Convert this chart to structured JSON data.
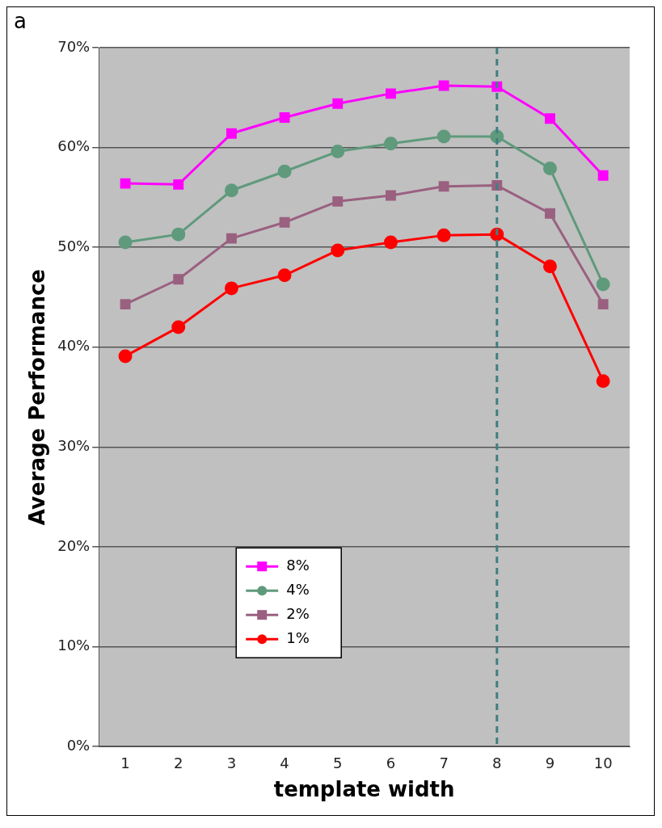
{
  "chart_data": {
    "type": "line",
    "xlabel": "template width",
    "ylabel": "Average Performance",
    "categories": [
      "1",
      "2",
      "3",
      "4",
      "5",
      "6",
      "7",
      "8",
      "9",
      "10"
    ],
    "series": [
      {
        "name": "8%",
        "color": "#ff00ff",
        "marker": "square",
        "values": [
          56.4,
          56.3,
          61.4,
          63.0,
          64.4,
          65.4,
          66.2,
          66.1,
          62.9,
          57.2
        ]
      },
      {
        "name": "4%",
        "color": "#5f9a7c",
        "marker": "circle",
        "values": [
          50.5,
          51.3,
          55.7,
          57.6,
          59.6,
          60.4,
          61.1,
          61.1,
          57.9,
          46.3
        ]
      },
      {
        "name": "2%",
        "color": "#9a6080",
        "marker": "square",
        "values": [
          44.3,
          46.8,
          50.9,
          52.5,
          54.6,
          55.2,
          56.1,
          56.2,
          53.4,
          44.3
        ]
      },
      {
        "name": "1%",
        "color": "#ff0000",
        "marker": "circle",
        "values": [
          39.1,
          42.0,
          45.9,
          47.2,
          49.7,
          50.5,
          51.2,
          51.3,
          48.1,
          36.6
        ]
      }
    ],
    "ylim": [
      0,
      70
    ],
    "yticks": [
      {
        "value": 0,
        "label": "0%"
      },
      {
        "value": 10,
        "label": "10%"
      },
      {
        "value": 20,
        "label": "20%"
      },
      {
        "value": 30,
        "label": "30%"
      },
      {
        "value": 40,
        "label": "40%"
      },
      {
        "value": 50,
        "label": "50%"
      },
      {
        "value": 60,
        "label": "60%"
      },
      {
        "value": 70,
        "label": "70%"
      }
    ],
    "grid": "y",
    "legend": "bottom left",
    "line_style": "solid",
    "ref_lines": [
      {
        "axis": "x",
        "value": "8",
        "color": "#3f7f7f",
        "line_style": "dashed"
      }
    ],
    "annotations": [
      "a"
    ]
  }
}
